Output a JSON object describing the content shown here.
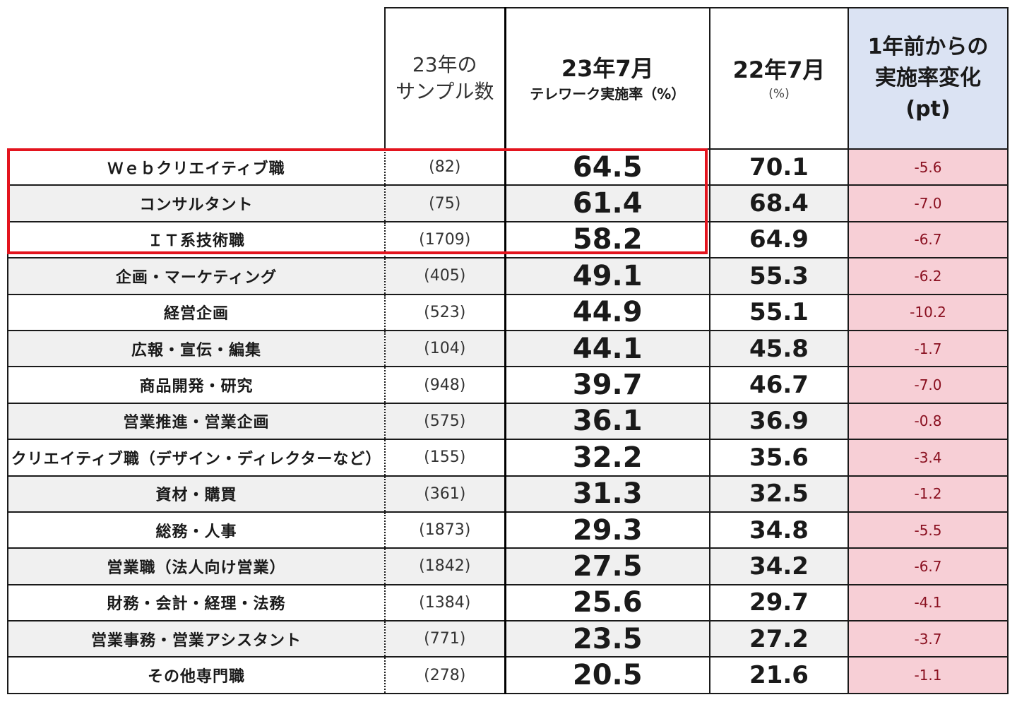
{
  "chart_data": {
    "type": "table",
    "columns": {
      "sample_line1": "23年の",
      "sample_line2": "サンプル数",
      "rate23_title": "23年7月",
      "rate23_sub": "テレワーク実施率（%）",
      "rate22_title": "22年7月",
      "rate22_unit": "(%)",
      "diff_line1": "1年前からの",
      "diff_line2": "実施率変化",
      "diff_line3": "(pt)"
    },
    "rows": [
      {
        "name": "Ｗｅｂクリエイティブ職",
        "n": "(82)",
        "v23": "64.5",
        "v22": "70.1",
        "diff": "-5.6"
      },
      {
        "name": "コンサルタント",
        "n": "(75)",
        "v23": "61.4",
        "v22": "68.4",
        "diff": "-7.0"
      },
      {
        "name": "ＩＴ系技術職",
        "n": "(1709)",
        "v23": "58.2",
        "v22": "64.9",
        "diff": "-6.7"
      },
      {
        "name": "企画・マーケティング",
        "n": "(405)",
        "v23": "49.1",
        "v22": "55.3",
        "diff": "-6.2"
      },
      {
        "name": "経営企画",
        "n": "(523)",
        "v23": "44.9",
        "v22": "55.1",
        "diff": "-10.2"
      },
      {
        "name": "広報・宣伝・編集",
        "n": "(104)",
        "v23": "44.1",
        "v22": "45.8",
        "diff": "-1.7"
      },
      {
        "name": "商品開発・研究",
        "n": "(948)",
        "v23": "39.7",
        "v22": "46.7",
        "diff": "-7.0"
      },
      {
        "name": "営業推進・営業企画",
        "n": "(575)",
        "v23": "36.1",
        "v22": "36.9",
        "diff": "-0.8"
      },
      {
        "name": "クリエイティブ職（デザイン・ディレクターなど）",
        "n": "(155)",
        "v23": "32.2",
        "v22": "35.6",
        "diff": "-3.4"
      },
      {
        "name": "資材・購買",
        "n": "(361)",
        "v23": "31.3",
        "v22": "32.5",
        "diff": "-1.2"
      },
      {
        "name": "総務・人事",
        "n": "(1873)",
        "v23": "29.3",
        "v22": "34.8",
        "diff": "-5.5"
      },
      {
        "name": "営業職（法人向け営業）",
        "n": "(1842)",
        "v23": "27.5",
        "v22": "34.2",
        "diff": "-6.7"
      },
      {
        "name": "財務・会計・経理・法務",
        "n": "(1384)",
        "v23": "25.6",
        "v22": "29.7",
        "diff": "-4.1"
      },
      {
        "name": "営業事務・営業アシスタント",
        "n": "(771)",
        "v23": "23.5",
        "v22": "27.2",
        "diff": "-3.7"
      },
      {
        "name": "その他専門職",
        "n": "(278)",
        "v23": "20.5",
        "v22": "21.6",
        "diff": "-1.1"
      }
    ],
    "highlighted_rows": 3,
    "colors": {
      "highlight_border": "#e3141e",
      "diff_header_bg": "#dbe3f3",
      "diff_cell_bg": "#f7cfd6",
      "stripe_bg": "#f0f0f0"
    }
  }
}
